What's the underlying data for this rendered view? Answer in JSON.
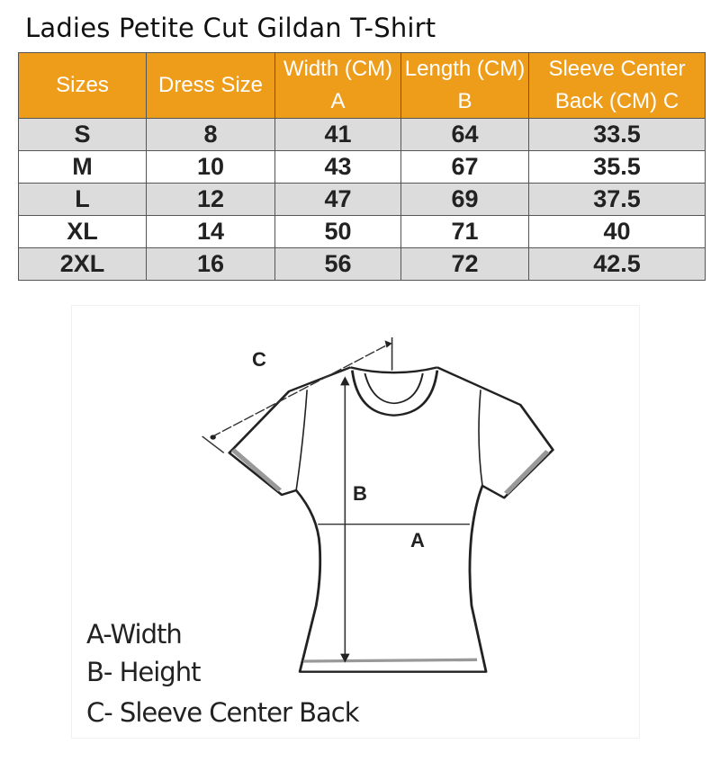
{
  "title": "Ladies Petite Cut Gildan T-Shirt",
  "table": {
    "headers": [
      "Sizes",
      "Dress Size",
      "Width (CM) A",
      "Length (CM) B",
      "Sleeve Center Back (CM) C"
    ],
    "rows": [
      [
        "S",
        "8",
        "41",
        "64",
        "33.5"
      ],
      [
        "M",
        "10",
        "43",
        "67",
        "35.5"
      ],
      [
        "L",
        "12",
        "47",
        "69",
        "37.5"
      ],
      [
        "XL",
        "14",
        "50",
        "71",
        "40"
      ],
      [
        "2XL",
        "16",
        "56",
        "72",
        "42.5"
      ]
    ],
    "header_color": "#ee9d1b",
    "stripe_color": "#dcdcdc"
  },
  "diagram": {
    "labels": {
      "a": "A",
      "b": "B",
      "c": "C"
    },
    "legend": [
      "A-Width",
      "B- Height",
      "C- Sleeve Center Back"
    ]
  }
}
